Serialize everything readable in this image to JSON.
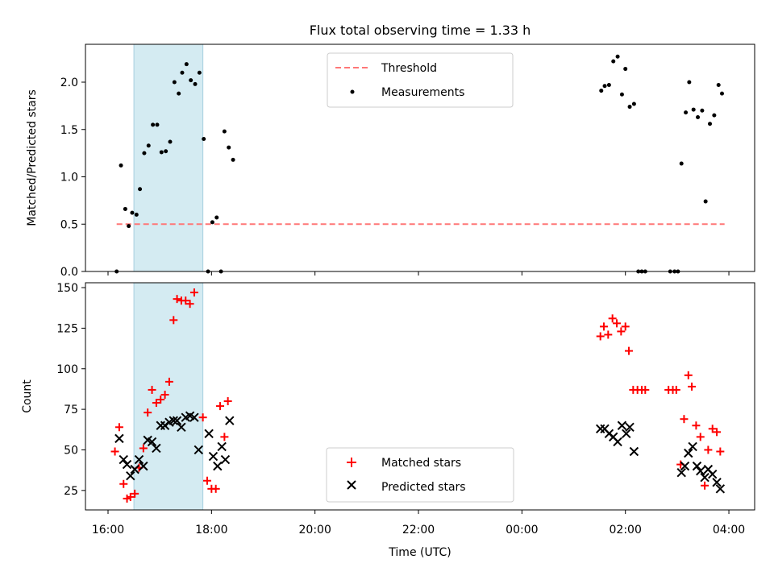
{
  "chart_data": [
    {
      "type": "scatter",
      "title": "Flux total observing time = 1.33 h",
      "xlabel": "",
      "ylabel": "Matched/Predicted stars",
      "ylim": [
        0,
        2.4
      ],
      "yticks": [
        "0.0",
        "0.5",
        "1.0",
        "1.5",
        "2.0"
      ],
      "xlim": [
        "15:50",
        "04:15"
      ],
      "xticks": [
        "16:00",
        "18:00",
        "20:00",
        "22:00",
        "00:00",
        "02:00",
        "04:00"
      ],
      "legend_position": "upper center",
      "highlight_span": [
        "16:30",
        "17:50"
      ],
      "threshold": {
        "name": "Threshold",
        "value": 0.5,
        "x": [
          "16:10",
          "03:55"
        ],
        "color": "#ff7777",
        "style": "dashed"
      },
      "series": [
        {
          "name": "Measurements",
          "color": "#000000",
          "marker": "dot",
          "points": [
            [
              "16:10",
              0.0
            ],
            [
              "16:15",
              1.12
            ],
            [
              "16:20",
              0.66
            ],
            [
              "16:24",
              0.48
            ],
            [
              "16:28",
              0.62
            ],
            [
              "16:33",
              0.6
            ],
            [
              "16:37",
              0.87
            ],
            [
              "16:42",
              1.25
            ],
            [
              "16:47",
              1.33
            ],
            [
              "16:52",
              1.55
            ],
            [
              "16:57",
              1.55
            ],
            [
              "17:02",
              1.26
            ],
            [
              "17:07",
              1.27
            ],
            [
              "17:12",
              1.37
            ],
            [
              "17:17",
              2.0
            ],
            [
              "17:22",
              1.88
            ],
            [
              "17:26",
              2.1
            ],
            [
              "17:31",
              2.19
            ],
            [
              "17:36",
              2.02
            ],
            [
              "17:41",
              1.98
            ],
            [
              "17:46",
              2.1
            ],
            [
              "17:51",
              1.4
            ],
            [
              "17:56",
              0.0
            ],
            [
              "18:01",
              0.52
            ],
            [
              "18:06",
              0.57
            ],
            [
              "18:11",
              0.0
            ],
            [
              "18:15",
              1.48
            ],
            [
              "18:20",
              1.31
            ],
            [
              "18:25",
              1.18
            ],
            [
              "01:32",
              1.91
            ],
            [
              "01:36",
              1.96
            ],
            [
              "01:41",
              1.97
            ],
            [
              "01:46",
              2.22
            ],
            [
              "01:51",
              2.27
            ],
            [
              "01:56",
              1.87
            ],
            [
              "02:00",
              2.14
            ],
            [
              "02:05",
              1.74
            ],
            [
              "02:10",
              1.77
            ],
            [
              "02:15",
              0.0
            ],
            [
              "02:19",
              0.0
            ],
            [
              "02:23",
              0.0
            ],
            [
              "02:52",
              0.0
            ],
            [
              "02:57",
              0.0
            ],
            [
              "03:01",
              0.0
            ],
            [
              "03:05",
              1.14
            ],
            [
              "03:10",
              1.68
            ],
            [
              "03:14",
              2.0
            ],
            [
              "03:19",
              1.71
            ],
            [
              "03:24",
              1.63
            ],
            [
              "03:29",
              1.7
            ],
            [
              "03:33",
              0.74
            ],
            [
              "03:38",
              1.56
            ],
            [
              "03:43",
              1.65
            ],
            [
              "03:48",
              1.97
            ],
            [
              "03:52",
              1.88
            ]
          ]
        }
      ]
    },
    {
      "type": "scatter",
      "title": "",
      "xlabel": "Time (UTC)",
      "ylabel": "Count",
      "ylim": [
        13,
        153
      ],
      "yticks": [
        "25",
        "50",
        "75",
        "100",
        "125",
        "150"
      ],
      "xlim": [
        "15:50",
        "04:15"
      ],
      "xticks": [
        "16:00",
        "18:00",
        "20:00",
        "22:00",
        "00:00",
        "02:00",
        "04:00"
      ],
      "legend_position": "lower center",
      "highlight_span": [
        "16:30",
        "17:50"
      ],
      "series": [
        {
          "name": "Matched stars",
          "color": "#ff0000",
          "marker": "plus",
          "points": [
            [
              "16:08",
              49
            ],
            [
              "16:13",
              64
            ],
            [
              "16:18",
              29
            ],
            [
              "16:22",
              20
            ],
            [
              "16:26",
              21
            ],
            [
              "16:31",
              23
            ],
            [
              "16:36",
              39
            ],
            [
              "16:41",
              51
            ],
            [
              "16:46",
              73
            ],
            [
              "16:51",
              87
            ],
            [
              "16:56",
              79
            ],
            [
              "17:01",
              81
            ],
            [
              "17:06",
              84
            ],
            [
              "17:11",
              92
            ],
            [
              "17:16",
              130
            ],
            [
              "17:20",
              143
            ],
            [
              "17:25",
              142
            ],
            [
              "17:30",
              142
            ],
            [
              "17:35",
              140
            ],
            [
              "17:40",
              147
            ],
            [
              "17:50",
              70
            ],
            [
              "17:55",
              31
            ],
            [
              "18:00",
              26
            ],
            [
              "18:05",
              26
            ],
            [
              "18:10",
              77
            ],
            [
              "18:15",
              58
            ],
            [
              "18:19",
              80
            ],
            [
              "01:31",
              120
            ],
            [
              "01:35",
              126
            ],
            [
              "01:40",
              121
            ],
            [
              "01:45",
              131
            ],
            [
              "01:50",
              128
            ],
            [
              "01:55",
              123
            ],
            [
              "02:00",
              126
            ],
            [
              "02:04",
              111
            ],
            [
              "02:09",
              87
            ],
            [
              "02:14",
              87
            ],
            [
              "02:19",
              87
            ],
            [
              "02:23",
              87
            ],
            [
              "02:50",
              87
            ],
            [
              "02:55",
              87
            ],
            [
              "02:59",
              87
            ],
            [
              "03:04",
              41
            ],
            [
              "03:08",
              69
            ],
            [
              "03:13",
              96
            ],
            [
              "03:17",
              89
            ],
            [
              "03:22",
              65
            ],
            [
              "03:27",
              58
            ],
            [
              "03:32",
              28
            ],
            [
              "03:36",
              50
            ],
            [
              "03:41",
              63
            ],
            [
              "03:46",
              61
            ],
            [
              "03:50",
              49
            ]
          ]
        },
        {
          "name": "Predicted stars",
          "color": "#000000",
          "marker": "x",
          "points": [
            [
              "16:13",
              57
            ],
            [
              "16:18",
              44
            ],
            [
              "16:22",
              41
            ],
            [
              "16:26",
              34
            ],
            [
              "16:31",
              38
            ],
            [
              "16:36",
              44
            ],
            [
              "16:41",
              40
            ],
            [
              "16:46",
              56
            ],
            [
              "16:51",
              55
            ],
            [
              "16:56",
              51
            ],
            [
              "17:01",
              65
            ],
            [
              "17:06",
              65
            ],
            [
              "17:11",
              67
            ],
            [
              "17:16",
              68
            ],
            [
              "17:20",
              68
            ],
            [
              "17:25",
              64
            ],
            [
              "17:30",
              70
            ],
            [
              "17:35",
              71
            ],
            [
              "17:40",
              70
            ],
            [
              "17:45",
              50
            ],
            [
              "17:57",
              60
            ],
            [
              "18:02",
              46
            ],
            [
              "18:07",
              40
            ],
            [
              "18:12",
              52
            ],
            [
              "18:16",
              44
            ],
            [
              "18:21",
              68
            ],
            [
              "01:31",
              63
            ],
            [
              "01:36",
              63
            ],
            [
              "01:41",
              60
            ],
            [
              "01:46",
              58
            ],
            [
              "01:51",
              55
            ],
            [
              "01:56",
              65
            ],
            [
              "02:01",
              60
            ],
            [
              "02:05",
              64
            ],
            [
              "02:10",
              49
            ],
            [
              "03:05",
              36
            ],
            [
              "03:09",
              40
            ],
            [
              "03:13",
              48
            ],
            [
              "03:18",
              52
            ],
            [
              "03:23",
              40
            ],
            [
              "03:27",
              37
            ],
            [
              "03:32",
              33
            ],
            [
              "03:36",
              38
            ],
            [
              "03:41",
              35
            ],
            [
              "03:46",
              30
            ],
            [
              "03:50",
              26
            ]
          ]
        }
      ]
    }
  ]
}
